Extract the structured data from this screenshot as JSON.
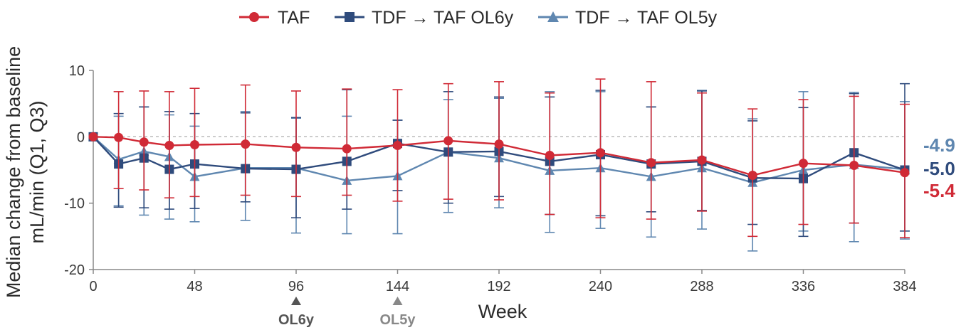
{
  "chart_data": {
    "type": "line",
    "xlabel": "Week",
    "ylabel_line1": "Median change from baseline",
    "ylabel_line2": "mL/min (Q1, Q3)",
    "xlim": [
      0,
      384
    ],
    "ylim": [
      -20,
      10
    ],
    "x_ticks": [
      "0",
      "48",
      "96",
      "144",
      "192",
      "240",
      "288",
      "336",
      "384"
    ],
    "y_ticks": [
      "10",
      "0",
      "-10",
      "-20"
    ],
    "reference_line_y": 0,
    "legend_position": "top-center",
    "annotations": [
      {
        "x": 96,
        "label": "OL6y",
        "color": "#555555"
      },
      {
        "x": 144,
        "label": "OL5y",
        "color": "#888888"
      }
    ],
    "series": [
      {
        "name": "TAF",
        "color": "#d02a36",
        "marker": "circle",
        "end_label": "-5.4",
        "x": [
          0,
          12,
          24,
          36,
          48,
          72,
          96,
          120,
          144,
          168,
          192,
          216,
          240,
          264,
          288,
          312,
          336,
          360,
          384
        ],
        "y": [
          0,
          -0.1,
          -0.8,
          -1.3,
          -1.2,
          -1.1,
          -1.6,
          -1.8,
          -1.3,
          -0.6,
          -1.1,
          -2.8,
          -2.4,
          -3.9,
          -3.5,
          -5.8,
          -4.0,
          -4.3,
          -5.4
        ],
        "q1": [
          0,
          -7.8,
          -8.0,
          -9.2,
          -9.0,
          -8.8,
          -9.0,
          -8.8,
          -9.7,
          -9.4,
          -9.5,
          -11.7,
          -12.2,
          -12.4,
          -11.2,
          -15.0,
          -13.2,
          -13.0,
          -15.2
        ],
        "q3": [
          0,
          6.8,
          6.9,
          6.8,
          7.3,
          7.8,
          6.9,
          7.2,
          7.1,
          8.0,
          8.3,
          6.6,
          8.7,
          8.3,
          6.6,
          4.2,
          5.6,
          6.1,
          4.9
        ]
      },
      {
        "name": "TDF → TAF OL6y",
        "color": "#2f4b7c",
        "marker": "square",
        "end_label": "-5.0",
        "x": [
          0,
          12,
          24,
          36,
          48,
          72,
          96,
          120,
          144,
          168,
          192,
          216,
          240,
          264,
          288,
          312,
          336,
          360,
          384
        ],
        "y": [
          0,
          -4.1,
          -3.2,
          -4.9,
          -4.1,
          -4.8,
          -4.9,
          -3.7,
          -1.0,
          -2.3,
          -2.2,
          -3.7,
          -2.7,
          -4.1,
          -3.7,
          -6.2,
          -6.3,
          -2.4,
          -5.0
        ],
        "q1": [
          0,
          -10.6,
          -10.7,
          -10.9,
          -10.8,
          -9.8,
          -12.2,
          -10.9,
          -8.1,
          -10.0,
          -9.0,
          -11.7,
          -11.9,
          -11.3,
          -11.1,
          -13.2,
          -15.0,
          -13.0,
          -14.2
        ],
        "q3": [
          0,
          3.5,
          4.5,
          3.8,
          3.5,
          3.6,
          2.9,
          7.1,
          2.5,
          6.8,
          6.0,
          6.0,
          7.0,
          4.5,
          6.9,
          2.4,
          4.4,
          6.5,
          8.0
        ]
      },
      {
        "name": "TDF → TAF OL5y",
        "color": "#5f87b0",
        "marker": "triangle",
        "end_label": "-4.9",
        "x": [
          0,
          12,
          24,
          36,
          48,
          72,
          96,
          120,
          144,
          168,
          192,
          216,
          240,
          264,
          288,
          312,
          336,
          360,
          384
        ],
        "y": [
          0,
          -3.4,
          -2.2,
          -3.0,
          -6.0,
          -4.7,
          -4.7,
          -6.6,
          -5.9,
          -2.3,
          -3.2,
          -5.1,
          -4.7,
          -6.0,
          -4.7,
          -6.9,
          -5.0,
          -4.2,
          -4.9
        ],
        "q1": [
          0,
          -10.4,
          -11.8,
          -12.4,
          -12.8,
          -12.6,
          -14.5,
          -14.6,
          -14.6,
          -11.4,
          -10.7,
          -14.4,
          -13.8,
          -15.1,
          -13.9,
          -17.2,
          -14.2,
          -15.8,
          -15.4
        ],
        "q3": [
          0,
          3.1,
          4.5,
          3.3,
          1.6,
          3.8,
          2.8,
          3.1,
          2.5,
          5.6,
          5.8,
          6.8,
          6.8,
          4.5,
          7.0,
          2.7,
          6.8,
          6.7,
          5.3
        ]
      }
    ]
  }
}
